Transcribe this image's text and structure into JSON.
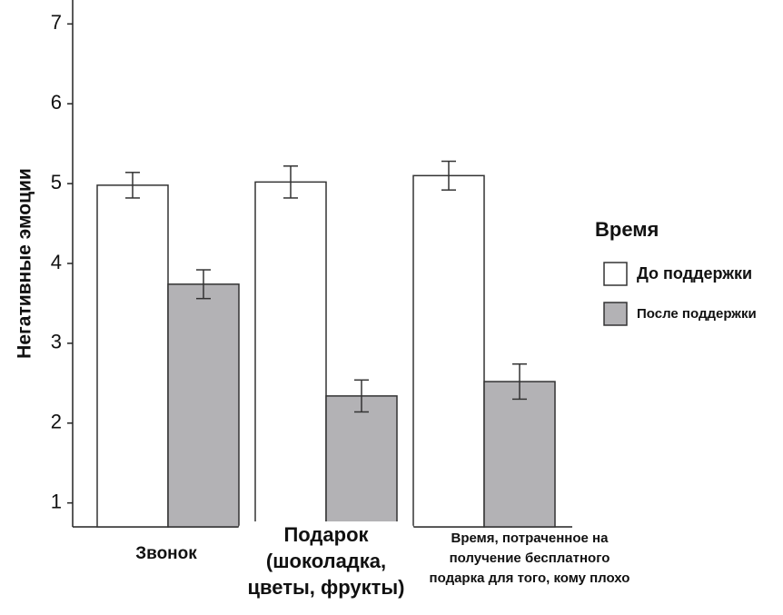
{
  "chart_data": {
    "type": "bar",
    "y_label": "Негативные эмоции",
    "categories": [
      "Звонок",
      "Подарок (шоколадка, цветы, фрукты)",
      "Время, потраченное на получение бесплатного подарка для того, кому плохо"
    ],
    "series": [
      {
        "name": "До поддержки",
        "color": "#ffffff",
        "values": [
          4.98,
          5.02,
          5.1
        ],
        "errors": [
          0.16,
          0.2,
          0.18
        ]
      },
      {
        "name": "После поддержки",
        "color": "#b3b2b5",
        "values": [
          3.74,
          2.34,
          2.52
        ],
        "errors": [
          0.18,
          0.2,
          0.22
        ]
      }
    ],
    "legend_title": "Время",
    "ylim": [
      0.7,
      7.3
    ],
    "yticks": [
      1,
      2,
      3,
      4,
      5,
      6,
      7
    ]
  }
}
